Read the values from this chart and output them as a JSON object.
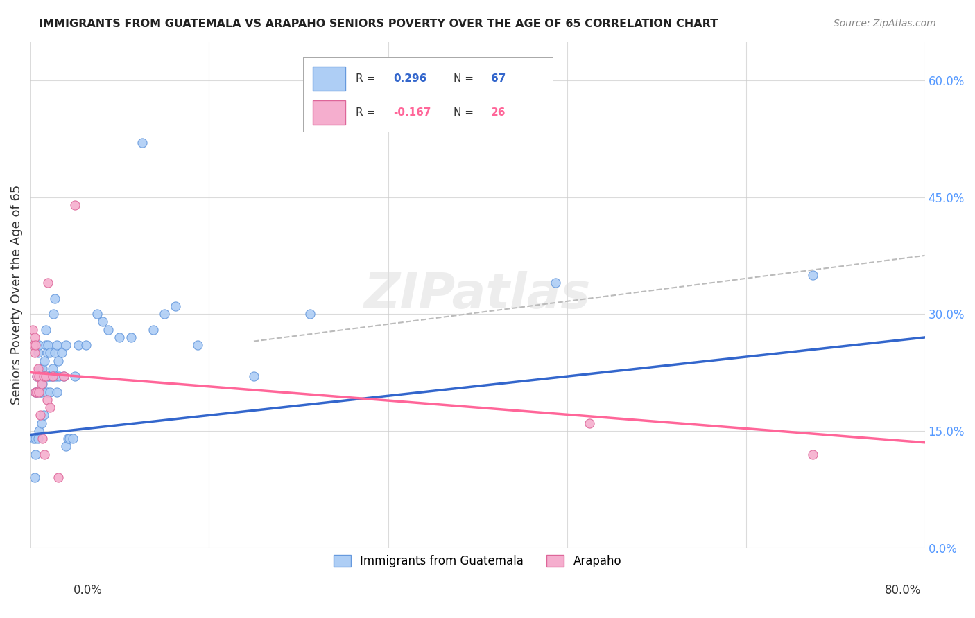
{
  "title": "IMMIGRANTS FROM GUATEMALA VS ARAPAHO SENIORS POVERTY OVER THE AGE OF 65 CORRELATION CHART",
  "source": "Source: ZipAtlas.com",
  "ylabel": "Seniors Poverty Over the Age of 65",
  "yticks": [
    0.0,
    0.15,
    0.3,
    0.45,
    0.6
  ],
  "xticks": [
    0.0,
    0.16,
    0.32,
    0.48,
    0.64,
    0.8
  ],
  "xlim": [
    0.0,
    0.8
  ],
  "ylim": [
    0.0,
    0.65
  ],
  "blue_R": 0.296,
  "blue_N": 67,
  "pink_R": -0.167,
  "pink_N": 26,
  "blue_color": "#AECEF5",
  "pink_color": "#F5AECE",
  "blue_edge_color": "#6699DD",
  "pink_edge_color": "#DD6699",
  "blue_line_color": "#3366CC",
  "pink_line_color": "#FF6699",
  "dash_line_color": "#BBBBBB",
  "legend_labels": [
    "Immigrants from Guatemala",
    "Arapaho"
  ],
  "watermark": "ZIPatlas",
  "blue_scatter_x": [
    0.003,
    0.004,
    0.005,
    0.005,
    0.005,
    0.006,
    0.006,
    0.007,
    0.007,
    0.008,
    0.008,
    0.008,
    0.009,
    0.009,
    0.01,
    0.01,
    0.01,
    0.011,
    0.011,
    0.012,
    0.012,
    0.013,
    0.013,
    0.014,
    0.014,
    0.015,
    0.015,
    0.016,
    0.016,
    0.017,
    0.018,
    0.018,
    0.019,
    0.02,
    0.021,
    0.021,
    0.022,
    0.022,
    0.023,
    0.024,
    0.024,
    0.025,
    0.026,
    0.028,
    0.03,
    0.032,
    0.032,
    0.034,
    0.035,
    0.038,
    0.04,
    0.043,
    0.05,
    0.06,
    0.065,
    0.07,
    0.08,
    0.09,
    0.1,
    0.11,
    0.12,
    0.13,
    0.15,
    0.2,
    0.25,
    0.47,
    0.7
  ],
  "blue_scatter_y": [
    0.14,
    0.09,
    0.14,
    0.12,
    0.2,
    0.2,
    0.22,
    0.25,
    0.14,
    0.22,
    0.26,
    0.15,
    0.23,
    0.2,
    0.2,
    0.22,
    0.16,
    0.21,
    0.23,
    0.22,
    0.17,
    0.22,
    0.24,
    0.26,
    0.28,
    0.25,
    0.2,
    0.22,
    0.26,
    0.22,
    0.25,
    0.2,
    0.22,
    0.23,
    0.22,
    0.3,
    0.25,
    0.32,
    0.22,
    0.2,
    0.26,
    0.24,
    0.22,
    0.25,
    0.22,
    0.13,
    0.26,
    0.14,
    0.14,
    0.14,
    0.22,
    0.26,
    0.26,
    0.3,
    0.29,
    0.28,
    0.27,
    0.27,
    0.52,
    0.28,
    0.3,
    0.31,
    0.26,
    0.22,
    0.3,
    0.34,
    0.35
  ],
  "pink_scatter_x": [
    0.002,
    0.003,
    0.004,
    0.004,
    0.005,
    0.005,
    0.006,
    0.006,
    0.007,
    0.008,
    0.008,
    0.009,
    0.01,
    0.011,
    0.012,
    0.013,
    0.014,
    0.015,
    0.016,
    0.018,
    0.02,
    0.025,
    0.03,
    0.04,
    0.5,
    0.7
  ],
  "pink_scatter_y": [
    0.28,
    0.26,
    0.25,
    0.27,
    0.2,
    0.26,
    0.22,
    0.2,
    0.23,
    0.2,
    0.22,
    0.17,
    0.21,
    0.14,
    0.22,
    0.12,
    0.22,
    0.19,
    0.34,
    0.18,
    0.22,
    0.09,
    0.22,
    0.44,
    0.16,
    0.12
  ],
  "blue_line_y_start": 0.145,
  "blue_line_y_end": 0.27,
  "pink_line_y_start": 0.225,
  "pink_line_y_end": 0.135,
  "dash_line_x_start": 0.2,
  "dash_line_x_end": 0.8,
  "dash_line_y_start": 0.265,
  "dash_line_y_end": 0.375
}
